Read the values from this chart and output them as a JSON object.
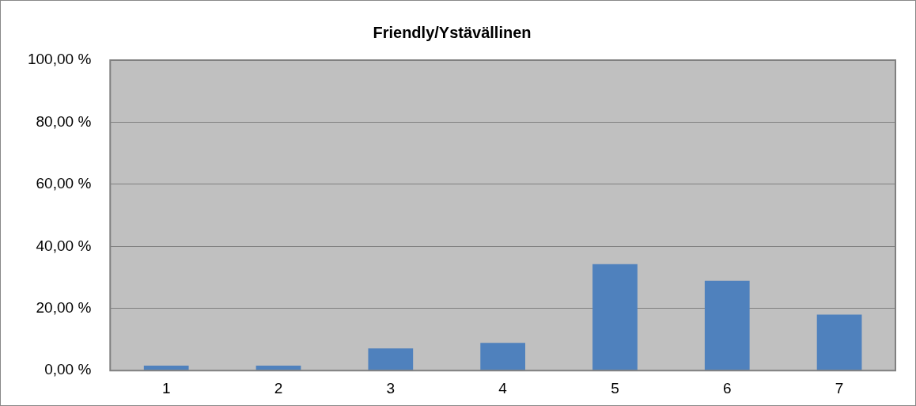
{
  "chart_data": {
    "type": "bar",
    "title": "Friendly/Ystävällinen",
    "categories": [
      "1",
      "2",
      "3",
      "4",
      "5",
      "6",
      "7"
    ],
    "values": [
      1.6,
      1.6,
      7.1,
      8.9,
      34.3,
      28.9,
      18.0
    ],
    "color": "#4f81bd",
    "ylim": [
      0,
      100
    ],
    "yticks": [
      {
        "value": 0,
        "label": "0,00 %"
      },
      {
        "value": 20,
        "label": "20,00 %"
      },
      {
        "value": 40,
        "label": "40,00 %"
      },
      {
        "value": 60,
        "label": "60,00 %"
      },
      {
        "value": 80,
        "label": "80,00 %"
      },
      {
        "value": 100,
        "label": "100,00 %"
      }
    ],
    "grid": "y",
    "legend": false
  }
}
